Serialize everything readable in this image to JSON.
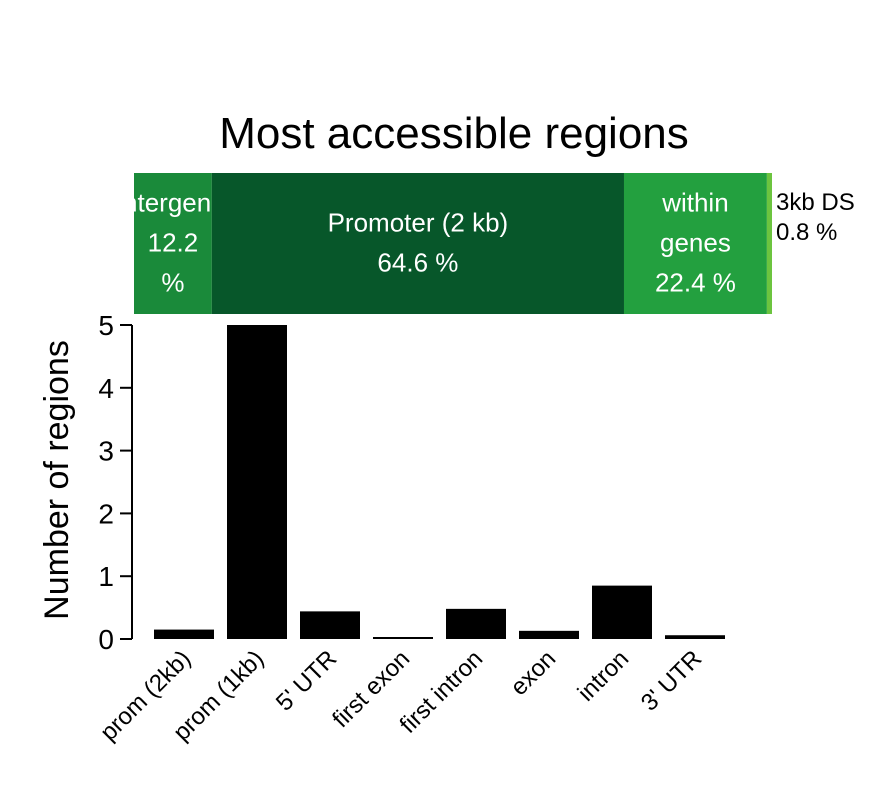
{
  "chart_data": {
    "type": "bar",
    "title": "Most accessible regions",
    "xlabel": "",
    "ylabel": "Number of regions",
    "ylim": [
      0,
      5
    ],
    "yticks": [
      "0",
      "1",
      "2",
      "3",
      "4",
      "5"
    ],
    "categories": [
      "prom (2kb)",
      "prom (1kb)",
      "5' UTR",
      "first exon",
      "first intron",
      "exon",
      "intron",
      "3' UTR"
    ],
    "values": [
      0.15,
      5.0,
      0.44,
      0.02,
      0.48,
      0.13,
      0.85,
      0.06
    ],
    "bar_color": "#000000",
    "grid": false,
    "composition_bar": {
      "type": "stacked-bar",
      "segments": [
        {
          "lines": [
            "Intergenic",
            "12.2",
            "%"
          ],
          "value": 12.2,
          "color": "#1a8a3a"
        },
        {
          "lines": [
            "Promoter (2 kb)",
            "64.6 %"
          ],
          "value": 64.6,
          "color": "#07572a"
        },
        {
          "lines": [
            "within",
            "genes",
            "22.4 %"
          ],
          "value": 22.4,
          "color": "#23a03f"
        },
        {
          "lines": [
            "3kb DS",
            "0.8 %"
          ],
          "value": 0.8,
          "color": "#6cc43f"
        }
      ]
    }
  }
}
